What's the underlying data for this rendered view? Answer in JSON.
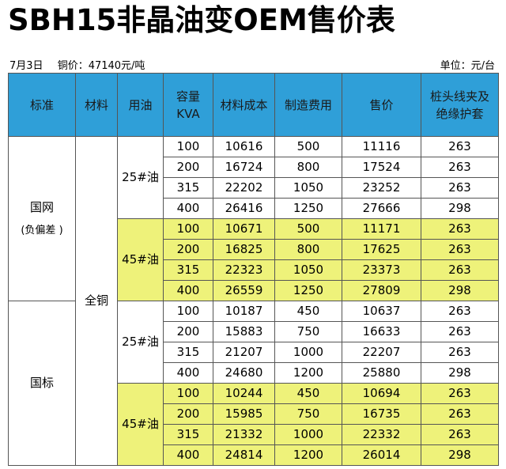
{
  "title": "SBH15非晶油变OEM售价表",
  "info": {
    "date": "7月3日",
    "copper_price": "铜价：47140元/吨",
    "unit": "单位：元/台"
  },
  "headers": {
    "standard": "标准",
    "material": "材料",
    "oil": "用油",
    "capacity_line1": "容量",
    "capacity_line2": "KVA",
    "material_cost": "材料成本",
    "manufacturing_fee": "制造费用",
    "price": "售价",
    "accessory_line1": "桩头线夹及",
    "accessory_line2": "绝缘护套"
  },
  "groups": {
    "guowang_line1": "国网",
    "guowang_line2": "(负偏差 )",
    "guobiao": "国标",
    "material": "全铜",
    "oil25": "25#油",
    "oil45": "45#油"
  },
  "rows": [
    {
      "kva": "100",
      "cost": "10616",
      "fee": "500",
      "price": "11116",
      "acc": "263"
    },
    {
      "kva": "200",
      "cost": "16724",
      "fee": "800",
      "price": "17524",
      "acc": "263"
    },
    {
      "kva": "315",
      "cost": "22202",
      "fee": "1050",
      "price": "23252",
      "acc": "263"
    },
    {
      "kva": "400",
      "cost": "26416",
      "fee": "1250",
      "price": "27666",
      "acc": "298"
    },
    {
      "kva": "100",
      "cost": "10671",
      "fee": "500",
      "price": "11171",
      "acc": "263"
    },
    {
      "kva": "200",
      "cost": "16825",
      "fee": "800",
      "price": "17625",
      "acc": "263"
    },
    {
      "kva": "315",
      "cost": "22323",
      "fee": "1050",
      "price": "23373",
      "acc": "263"
    },
    {
      "kva": "400",
      "cost": "26559",
      "fee": "1250",
      "price": "27809",
      "acc": "298"
    },
    {
      "kva": "100",
      "cost": "10187",
      "fee": "450",
      "price": "10637",
      "acc": "263"
    },
    {
      "kva": "200",
      "cost": "15883",
      "fee": "750",
      "price": "16633",
      "acc": "263"
    },
    {
      "kva": "315",
      "cost": "21207",
      "fee": "1000",
      "price": "22207",
      "acc": "263"
    },
    {
      "kva": "400",
      "cost": "24680",
      "fee": "1200",
      "price": "25880",
      "acc": "298"
    },
    {
      "kva": "100",
      "cost": "10244",
      "fee": "450",
      "price": "10694",
      "acc": "263"
    },
    {
      "kva": "200",
      "cost": "15985",
      "fee": "750",
      "price": "16735",
      "acc": "263"
    },
    {
      "kva": "315",
      "cost": "21332",
      "fee": "1000",
      "price": "22332",
      "acc": "263"
    },
    {
      "kva": "400",
      "cost": "24814",
      "fee": "1200",
      "price": "26014",
      "acc": "298"
    }
  ],
  "colors": {
    "header_bg": "#2f9fd8",
    "highlight_bg": "#eef27a"
  }
}
